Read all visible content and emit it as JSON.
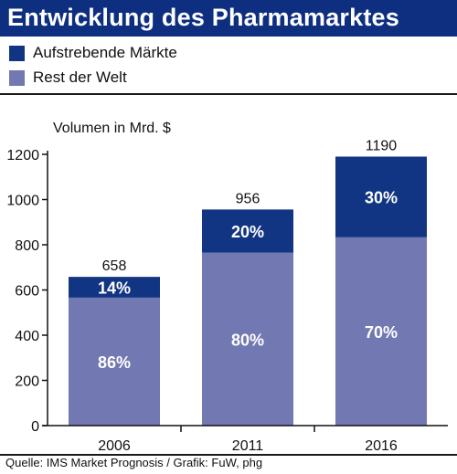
{
  "title": "Entwicklung des Pharmamarktes",
  "legend": [
    {
      "label": "Aufstrebende Märkte",
      "color": "#123583"
    },
    {
      "label": "Rest der Welt",
      "color": "#7278b2"
    }
  ],
  "source": "Quelle: IMS Market Prognosis / Grafik: FuW, phg",
  "chart_data": {
    "type": "bar",
    "stacked": true,
    "ylabel": "Volumen in Mrd. $",
    "ylim": [
      0,
      1200
    ],
    "yticks": [
      0,
      200,
      400,
      600,
      800,
      1000,
      1200
    ],
    "categories": [
      "2006",
      "2011",
      "2016"
    ],
    "totals": [
      658,
      956,
      1190
    ],
    "series": [
      {
        "name": "Rest der Welt",
        "color": "#7278b2",
        "values": [
          566,
          765,
          833
        ],
        "labels": [
          "86%",
          "80%",
          "70%"
        ]
      },
      {
        "name": "Aufstrebende Märkte",
        "color": "#123583",
        "values": [
          92,
          191,
          357
        ],
        "labels": [
          "14%",
          "20%",
          "30%"
        ]
      }
    ],
    "grid": false,
    "legend_position": "top-left"
  }
}
